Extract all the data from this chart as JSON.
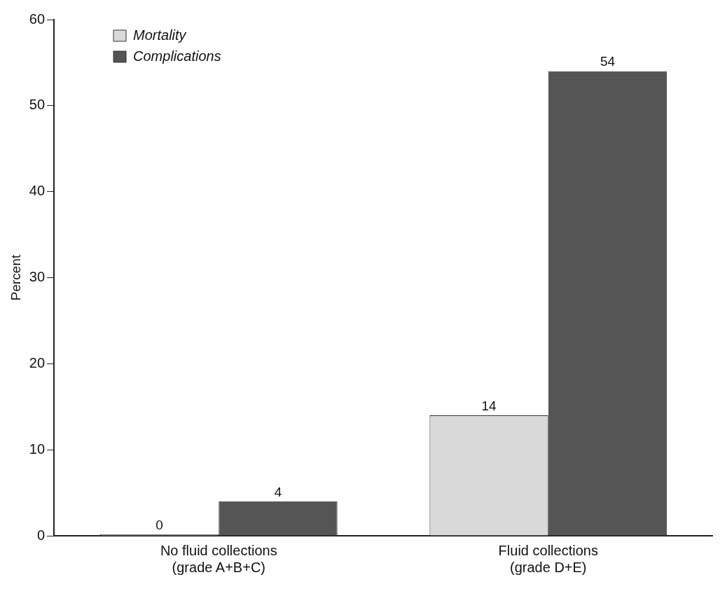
{
  "chart_data": {
    "type": "bar",
    "ylabel": "Percent",
    "categories": [
      "No fluid collections\n(grade A+B+C)",
      "Fluid collections\n(grade D+E)"
    ],
    "series": [
      {
        "name": "Mortality",
        "color": "#d9d9d9",
        "values": [
          0,
          14
        ]
      },
      {
        "name": "Complications",
        "color": "#555555",
        "values": [
          4,
          54
        ]
      }
    ],
    "ylim": [
      0,
      60
    ],
    "yticks": [
      0,
      10,
      20,
      30,
      40,
      50,
      60
    ],
    "grid": false,
    "legend": "top left",
    "data_labels": true
  }
}
